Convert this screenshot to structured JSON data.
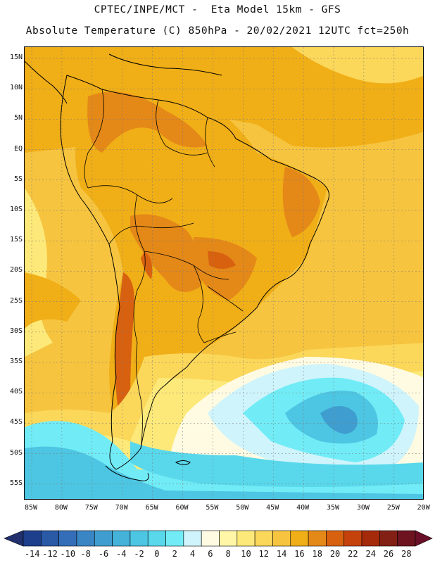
{
  "title": {
    "line1": "CPTEC/INPE/MCT -  Eta Model 15km - GFS",
    "line2": "Absolute Temperature (C) 850hPa - 20/02/2021 12UTC fct=250h"
  },
  "map": {
    "lat_labels": [
      "15N",
      "10N",
      "5N",
      "EQ",
      "5S",
      "10S",
      "15S",
      "20S",
      "25S",
      "30S",
      "35S",
      "40S",
      "45S",
      "50S",
      "55S"
    ],
    "lon_labels": [
      "85W",
      "80W",
      "75W",
      "70W",
      "65W",
      "60W",
      "55W",
      "50W",
      "45W",
      "40W",
      "35W",
      "30W",
      "25W",
      "20W"
    ],
    "grid": true
  },
  "colorbar": {
    "labels": [
      "-14",
      "-12",
      "-10",
      "-8",
      "-6",
      "-4",
      "-2",
      "0",
      "2",
      "4",
      "6",
      "8",
      "10",
      "12",
      "14",
      "16",
      "18",
      "20",
      "22",
      "24",
      "26",
      "28"
    ],
    "colors": [
      "#1e3f8c",
      "#2a59a6",
      "#346eb8",
      "#3a86c4",
      "#3f9ecf",
      "#45b2da",
      "#4dc6e3",
      "#59d8ec",
      "#71ecf7",
      "#cff4fb",
      "#fffbe3",
      "#fff6a8",
      "#fde979",
      "#fbd75a",
      "#f6c43f",
      "#f0ae17",
      "#e48818",
      "#d86110",
      "#c6420d",
      "#a52a0c",
      "#822015",
      "#6e1420"
    ],
    "end_low": "#22306e",
    "end_high": "#6a0f28"
  },
  "map_colors": {
    "warm_base": "#f0ae17",
    "warm_mid": "#f6c43f",
    "hot": "#e48818",
    "hotter": "#d86110",
    "light_warm": "#fbd75a",
    "pale_yellow": "#fde979",
    "cream": "#fffbe3",
    "pale_blue": "#cff4fb",
    "cyan": "#71ecf7",
    "cyan_mid": "#4dc6e3",
    "blue": "#3f9ecf",
    "deep_blue": "#346eb8"
  }
}
